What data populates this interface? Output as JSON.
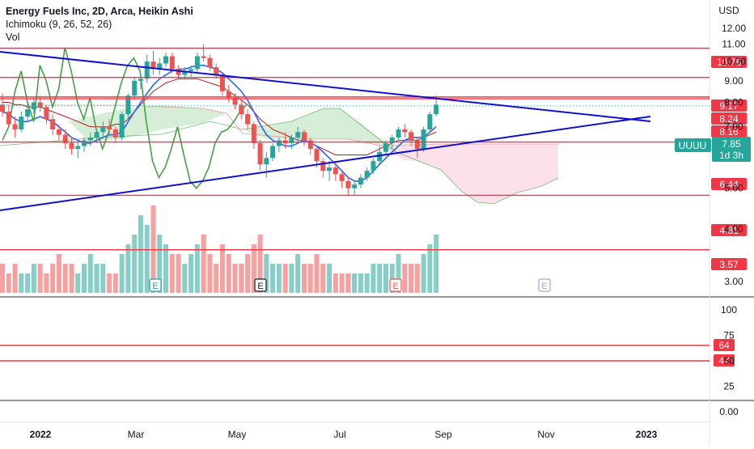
{
  "legend": {
    "title": "Energy Fuels Inc, 2D, Arca, Heikin Ashi",
    "ichimoku": "Ichimoku (9, 26, 52, 26)",
    "volume": "Vol"
  },
  "colors": {
    "up": "#26a69a",
    "down": "#ef5350",
    "trendline": "#1111cc",
    "level": "#f23645",
    "conversion": "#2962ff",
    "base": "#b71c1c",
    "lagging": "#43a047",
    "cloud_bull": "#a5d6a7",
    "cloud_bear": "#f8bbd0"
  },
  "chart_data": [
    {
      "type": "candlestick",
      "title": "Energy Fuels Inc, 2D, Arca, Heikin Ashi",
      "symbol": "UUUU",
      "currency": "USD",
      "scale": "log",
      "last_price": 7.85,
      "countdown": "1d 3h",
      "ylim": [
        2.8,
        13.5
      ],
      "y_ticks": [
        "12.00",
        "11.00",
        "10.00",
        "9.00",
        "8.00",
        "7.00",
        "6.00",
        "5.00",
        "4.00",
        "3.00"
      ],
      "x_ticks": [
        "2022",
        "Mar",
        "May",
        "Jul",
        "Sep",
        "Nov",
        "2023"
      ],
      "horizontal_levels": [
        10.76,
        9.17,
        8.24,
        8.16,
        6.44,
        4.81,
        3.57
      ],
      "level_labels": [
        "10.76",
        "9.17",
        "8.24",
        "8.16",
        "6.44",
        "4.81",
        "3.57"
      ],
      "earnings_markers": [
        "E",
        "E",
        "E",
        "E"
      ],
      "candles": [
        {
          "o": 7.9,
          "h": 8.4,
          "l": 7.4,
          "c": 7.6
        },
        {
          "o": 7.6,
          "h": 7.9,
          "l": 7.0,
          "c": 7.1
        },
        {
          "o": 7.1,
          "h": 7.4,
          "l": 6.6,
          "c": 6.9
        },
        {
          "o": 6.9,
          "h": 7.6,
          "l": 6.8,
          "c": 7.4
        },
        {
          "o": 7.4,
          "h": 7.9,
          "l": 7.2,
          "c": 7.7
        },
        {
          "o": 7.7,
          "h": 8.2,
          "l": 7.5,
          "c": 8.0
        },
        {
          "o": 8.0,
          "h": 8.3,
          "l": 7.6,
          "c": 7.8
        },
        {
          "o": 7.8,
          "h": 7.9,
          "l": 7.1,
          "c": 7.3
        },
        {
          "o": 7.3,
          "h": 7.5,
          "l": 6.7,
          "c": 6.9
        },
        {
          "o": 6.9,
          "h": 7.1,
          "l": 6.5,
          "c": 6.7
        },
        {
          "o": 6.7,
          "h": 6.9,
          "l": 6.2,
          "c": 6.4
        },
        {
          "o": 6.4,
          "h": 6.6,
          "l": 6.0,
          "c": 6.2
        },
        {
          "o": 6.2,
          "h": 6.5,
          "l": 5.9,
          "c": 6.3
        },
        {
          "o": 6.3,
          "h": 6.6,
          "l": 6.1,
          "c": 6.5
        },
        {
          "o": 6.5,
          "h": 6.8,
          "l": 6.3,
          "c": 6.6
        },
        {
          "o": 6.6,
          "h": 6.9,
          "l": 6.4,
          "c": 6.8
        },
        {
          "o": 6.8,
          "h": 7.2,
          "l": 6.6,
          "c": 7.0
        },
        {
          "o": 7.0,
          "h": 7.3,
          "l": 6.7,
          "c": 6.9
        },
        {
          "o": 6.9,
          "h": 7.0,
          "l": 6.4,
          "c": 6.6
        },
        {
          "o": 6.6,
          "h": 7.6,
          "l": 6.5,
          "c": 7.5
        },
        {
          "o": 7.5,
          "h": 8.4,
          "l": 7.3,
          "c": 8.3
        },
        {
          "o": 8.3,
          "h": 9.2,
          "l": 8.1,
          "c": 9.0
        },
        {
          "o": 9.0,
          "h": 9.4,
          "l": 8.6,
          "c": 9.1
        },
        {
          "o": 9.1,
          "h": 10.4,
          "l": 8.9,
          "c": 10.0
        },
        {
          "o": 10.0,
          "h": 10.6,
          "l": 9.3,
          "c": 9.6
        },
        {
          "o": 9.6,
          "h": 10.2,
          "l": 9.3,
          "c": 9.9
        },
        {
          "o": 9.9,
          "h": 10.5,
          "l": 9.7,
          "c": 10.3
        },
        {
          "o": 10.3,
          "h": 10.5,
          "l": 9.4,
          "c": 9.6
        },
        {
          "o": 9.6,
          "h": 9.8,
          "l": 9.1,
          "c": 9.3
        },
        {
          "o": 9.3,
          "h": 9.7,
          "l": 9.1,
          "c": 9.5
        },
        {
          "o": 9.5,
          "h": 9.8,
          "l": 9.2,
          "c": 9.6
        },
        {
          "o": 9.6,
          "h": 10.5,
          "l": 9.4,
          "c": 10.3
        },
        {
          "o": 10.3,
          "h": 11.0,
          "l": 10.0,
          "c": 10.2
        },
        {
          "o": 10.2,
          "h": 10.4,
          "l": 9.5,
          "c": 9.7
        },
        {
          "o": 9.7,
          "h": 9.9,
          "l": 9.1,
          "c": 9.3
        },
        {
          "o": 9.3,
          "h": 9.4,
          "l": 8.3,
          "c": 8.5
        },
        {
          "o": 8.5,
          "h": 8.8,
          "l": 8.0,
          "c": 8.2
        },
        {
          "o": 8.2,
          "h": 8.4,
          "l": 7.7,
          "c": 7.9
        },
        {
          "o": 7.9,
          "h": 8.1,
          "l": 7.3,
          "c": 7.5
        },
        {
          "o": 7.5,
          "h": 7.7,
          "l": 6.9,
          "c": 7.1
        },
        {
          "o": 7.1,
          "h": 7.2,
          "l": 6.2,
          "c": 6.4
        },
        {
          "o": 6.4,
          "h": 6.5,
          "l": 5.5,
          "c": 5.7
        },
        {
          "o": 5.7,
          "h": 6.1,
          "l": 5.3,
          "c": 5.9
        },
        {
          "o": 5.9,
          "h": 6.4,
          "l": 5.8,
          "c": 6.3
        },
        {
          "o": 6.3,
          "h": 6.6,
          "l": 6.1,
          "c": 6.5
        },
        {
          "o": 6.5,
          "h": 6.8,
          "l": 6.2,
          "c": 6.4
        },
        {
          "o": 6.4,
          "h": 6.7,
          "l": 6.2,
          "c": 6.6
        },
        {
          "o": 6.6,
          "h": 7.0,
          "l": 6.4,
          "c": 6.8
        },
        {
          "o": 6.8,
          "h": 6.9,
          "l": 6.3,
          "c": 6.5
        },
        {
          "o": 6.5,
          "h": 6.6,
          "l": 6.0,
          "c": 6.2
        },
        {
          "o": 6.2,
          "h": 6.3,
          "l": 5.6,
          "c": 5.8
        },
        {
          "o": 5.8,
          "h": 5.9,
          "l": 5.3,
          "c": 5.5
        },
        {
          "o": 5.5,
          "h": 5.8,
          "l": 5.2,
          "c": 5.6
        },
        {
          "o": 5.6,
          "h": 5.7,
          "l": 5.2,
          "c": 5.4
        },
        {
          "o": 5.4,
          "h": 5.5,
          "l": 5.0,
          "c": 5.2
        },
        {
          "o": 5.2,
          "h": 5.3,
          "l": 4.8,
          "c": 5.0
        },
        {
          "o": 5.0,
          "h": 5.2,
          "l": 4.8,
          "c": 5.1
        },
        {
          "o": 5.1,
          "h": 5.4,
          "l": 5.0,
          "c": 5.3
        },
        {
          "o": 5.3,
          "h": 5.6,
          "l": 5.2,
          "c": 5.5
        },
        {
          "o": 5.5,
          "h": 5.9,
          "l": 5.4,
          "c": 5.8
        },
        {
          "o": 5.8,
          "h": 6.3,
          "l": 5.7,
          "c": 6.1
        },
        {
          "o": 6.1,
          "h": 6.5,
          "l": 6.0,
          "c": 6.4
        },
        {
          "o": 6.4,
          "h": 6.7,
          "l": 6.2,
          "c": 6.6
        },
        {
          "o": 6.6,
          "h": 7.0,
          "l": 6.5,
          "c": 6.9
        },
        {
          "o": 6.9,
          "h": 7.1,
          "l": 6.6,
          "c": 6.8
        },
        {
          "o": 6.8,
          "h": 6.9,
          "l": 6.3,
          "c": 6.5
        },
        {
          "o": 6.5,
          "h": 6.6,
          "l": 5.9,
          "c": 6.2
        },
        {
          "o": 6.2,
          "h": 7.0,
          "l": 6.1,
          "c": 6.9
        },
        {
          "o": 6.9,
          "h": 7.6,
          "l": 6.8,
          "c": 7.5
        },
        {
          "o": 7.5,
          "h": 8.3,
          "l": 7.4,
          "c": 7.9
        }
      ],
      "ichimoku": {
        "conversion": [
          7.6,
          7.5,
          7.3,
          7.2,
          7.2,
          7.3,
          7.4,
          7.3,
          7.2,
          7.0,
          6.8,
          6.6,
          6.5,
          6.4,
          6.4,
          6.5,
          6.6,
          6.7,
          6.7,
          6.8,
          7.2,
          7.6,
          8.0,
          8.4,
          8.8,
          9.1,
          9.3,
          9.5,
          9.6,
          9.6,
          9.7,
          9.8,
          9.8,
          9.7,
          9.6,
          9.4,
          9.1,
          8.8,
          8.5,
          8.1,
          7.6,
          7.1,
          6.7,
          6.5,
          6.4,
          6.3,
          6.3,
          6.4,
          6.5,
          6.4,
          6.3,
          6.1,
          5.9,
          5.7,
          5.5,
          5.3,
          5.2,
          5.2,
          5.3,
          5.5,
          5.7,
          5.9,
          6.1,
          6.3,
          6.5,
          6.6,
          6.6,
          6.6,
          6.8,
          7.0
        ],
        "base": [
          8.0,
          8.0,
          7.9,
          7.9,
          7.8,
          7.8,
          7.8,
          7.7,
          7.6,
          7.5,
          7.4,
          7.3,
          7.2,
          7.1,
          7.0,
          7.0,
          7.0,
          7.0,
          7.1,
          7.1,
          7.3,
          7.6,
          7.9,
          8.2,
          8.5,
          8.7,
          8.9,
          9.0,
          9.1,
          9.1,
          9.1,
          9.1,
          9.0,
          8.9,
          8.8,
          8.7,
          8.5,
          8.3,
          8.1,
          7.9,
          7.6,
          7.3,
          7.1,
          6.9,
          6.8,
          6.7,
          6.6,
          6.5,
          6.5,
          6.4,
          6.3,
          6.2,
          6.1,
          6.0,
          6.0,
          6.0,
          6.0,
          6.0,
          6.0,
          6.1,
          6.2,
          6.3,
          6.4,
          6.5,
          6.5,
          6.5,
          6.5,
          6.6,
          6.7,
          6.8
        ]
      }
    },
    {
      "type": "bar",
      "title": "Vol",
      "note": "volume bars coloured by candle direction",
      "values": [
        3,
        2,
        3,
        2,
        2,
        3,
        3,
        2,
        3,
        4,
        3,
        3,
        2,
        3,
        4,
        3,
        3,
        2,
        2,
        4,
        5,
        6,
        8,
        7,
        9,
        6,
        5,
        4,
        4,
        3,
        4,
        5,
        6,
        4,
        3,
        5,
        4,
        3,
        3,
        4,
        5,
        6,
        4,
        3,
        3,
        3,
        3,
        4,
        3,
        3,
        4,
        3,
        3,
        2,
        2,
        2,
        2,
        2,
        2,
        3,
        3,
        3,
        3,
        4,
        3,
        3,
        3,
        4,
        5,
        6
      ]
    },
    {
      "type": "line",
      "title": "",
      "y_ticks": [
        "100",
        "75",
        "50",
        "25",
        "0.00"
      ],
      "ylim": [
        0,
        100
      ],
      "horizontal_levels": [
        64,
        47
      ],
      "level_labels": [
        "64",
        "47"
      ]
    }
  ]
}
